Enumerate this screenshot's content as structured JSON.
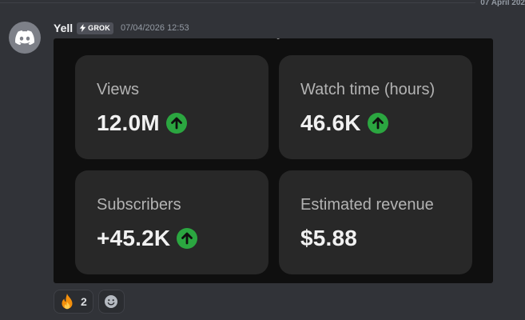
{
  "divider": {
    "date": "07 April 202"
  },
  "message": {
    "author": "Yell",
    "app_tag": "GROK",
    "timestamp": "07/04/2026 12:53",
    "avatar_icon": "discord-logo-icon"
  },
  "stats": [
    {
      "label": "Views",
      "value": "12.0M",
      "trend": "up"
    },
    {
      "label": "Watch time (hours)",
      "value": "46.6K",
      "trend": "up"
    },
    {
      "label": "Subscribers",
      "value": "+45.2K",
      "trend": "up"
    },
    {
      "label": "Estimated revenue",
      "value": "$5.88",
      "trend": "none"
    }
  ],
  "reactions": [
    {
      "emoji": "🔥",
      "icon": "fire-emoji-icon",
      "count": "2"
    }
  ],
  "colors": {
    "background": "#313338",
    "panel": "#0f0f0f",
    "card": "#282828",
    "trend_up": "#2ba640"
  }
}
